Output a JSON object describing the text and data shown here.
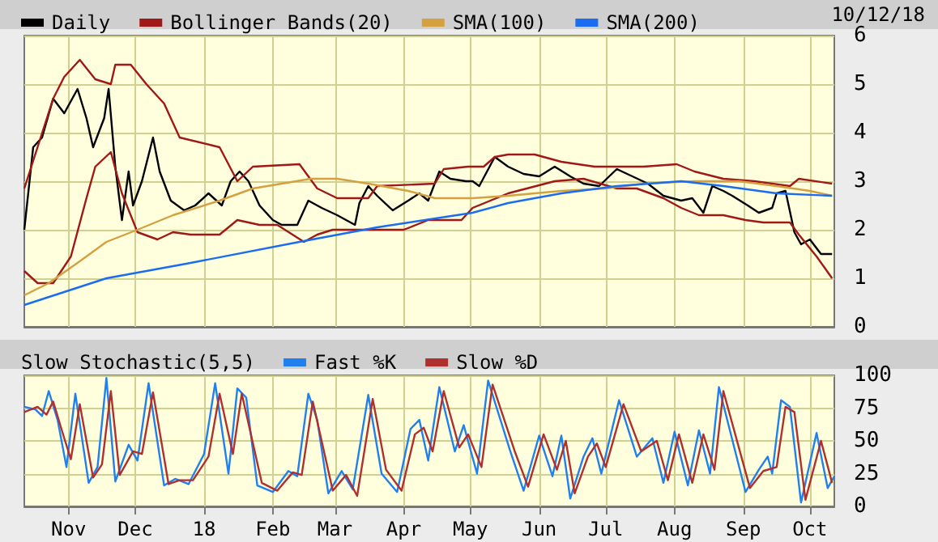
{
  "chart_data": [
    {
      "type": "line",
      "legend": "top left",
      "grid": true,
      "marker": "none",
      "line_style": "solid",
      "tick_labels": "y",
      "annotations": [
        "10/12/18"
      ],
      "xlim": [
        "2017-10-12",
        "2018-10-12"
      ],
      "xticks": [
        "2017-11-01",
        "2017-12-01",
        "2018-01-01",
        "2018-02-01",
        "2018-03-01",
        "2018-04-01",
        "2018-05-01",
        "2018-06-01",
        "2018-07-01",
        "2018-08-01",
        "2018-09-01",
        "2018-10-01"
      ],
      "ylim": [
        0,
        6
      ],
      "yticks": [
        0,
        1,
        2,
        3,
        4,
        5,
        6
      ],
      "series": [
        {
          "name": "Daily",
          "color": "#000000",
          "x": [
            "2017-10-12",
            "2017-10-16",
            "2017-10-20",
            "2017-10-25",
            "2017-10-30",
            "2017-11-05",
            "2017-11-09",
            "2017-11-12",
            "2017-11-17",
            "2017-11-19",
            "2017-11-22",
            "2017-11-25",
            "2017-11-28",
            "2017-11-30",
            "2017-12-04",
            "2017-12-09",
            "2017-12-12",
            "2017-12-17",
            "2017-12-23",
            "2017-12-28",
            "2018-01-03",
            "2018-01-09",
            "2018-01-13",
            "2018-01-17",
            "2018-01-21",
            "2018-01-26",
            "2018-02-01",
            "2018-02-05",
            "2018-02-12",
            "2018-02-17",
            "2018-02-23",
            "2018-03-02",
            "2018-03-10",
            "2018-03-12",
            "2018-03-16",
            "2018-03-20",
            "2018-03-27",
            "2018-04-03",
            "2018-04-08",
            "2018-04-12",
            "2018-04-17",
            "2018-04-22",
            "2018-04-29",
            "2018-05-02",
            "2018-05-05",
            "2018-05-12",
            "2018-05-18",
            "2018-05-25",
            "2018-06-01",
            "2018-06-08",
            "2018-06-15",
            "2018-06-21",
            "2018-06-28",
            "2018-07-06",
            "2018-07-13",
            "2018-07-20",
            "2018-07-27",
            "2018-08-04",
            "2018-08-09",
            "2018-08-14",
            "2018-08-18",
            "2018-08-23",
            "2018-08-27",
            "2018-09-03",
            "2018-09-08",
            "2018-09-14",
            "2018-09-16",
            "2018-09-20",
            "2018-09-24",
            "2018-09-27",
            "2018-10-01",
            "2018-10-06",
            "2018-10-11"
          ],
          "values": [
            2.0,
            3.7,
            3.9,
            4.7,
            4.4,
            4.9,
            4.3,
            3.7,
            4.3,
            4.9,
            3.3,
            2.2,
            3.2,
            2.5,
            3.0,
            3.9,
            3.2,
            2.6,
            2.4,
            2.5,
            2.75,
            2.5,
            3.0,
            3.2,
            3.0,
            2.5,
            2.2,
            2.1,
            2.1,
            2.6,
            2.45,
            2.3,
            2.1,
            2.55,
            2.9,
            2.7,
            2.4,
            2.6,
            2.75,
            2.6,
            3.2,
            3.05,
            3.0,
            3.0,
            2.9,
            3.5,
            3.3,
            3.15,
            3.1,
            3.3,
            3.1,
            2.95,
            2.9,
            3.25,
            3.1,
            2.95,
            2.7,
            2.6,
            2.65,
            2.35,
            2.9,
            2.8,
            2.7,
            2.5,
            2.35,
            2.45,
            2.75,
            2.8,
            1.95,
            1.7,
            1.8,
            1.5,
            1.5
          ]
        },
        {
          "name": "Bollinger Bands(20)",
          "color": "#a01818",
          "x": [
            "2017-10-12",
            "2017-10-25",
            "2017-10-30",
            "2017-11-06",
            "2017-11-13",
            "2017-11-20",
            "2017-11-22",
            "2017-11-29",
            "2017-12-06",
            "2017-12-14",
            "2017-12-21",
            "2018-01-08",
            "2018-01-16",
            "2018-01-23",
            "2018-02-13",
            "2018-02-21",
            "2018-03-02",
            "2018-03-16",
            "2018-03-20",
            "2018-04-15",
            "2018-04-19",
            "2018-04-30",
            "2018-05-07",
            "2018-05-12",
            "2018-05-18",
            "2018-05-30",
            "2018-06-11",
            "2018-06-26",
            "2018-07-06",
            "2018-07-18",
            "2018-08-02",
            "2018-08-10",
            "2018-08-23",
            "2018-09-06",
            "2018-09-22",
            "2018-09-26",
            "2018-10-11"
          ],
          "values": [
            2.85,
            4.7,
            5.15,
            5.5,
            5.1,
            5.0,
            5.4,
            5.4,
            5.0,
            4.6,
            3.9,
            3.7,
            3.0,
            3.3,
            3.35,
            2.85,
            2.65,
            2.65,
            2.9,
            2.95,
            3.25,
            3.3,
            3.3,
            3.5,
            3.55,
            3.55,
            3.4,
            3.3,
            3.3,
            3.3,
            3.35,
            3.2,
            3.05,
            3.0,
            2.9,
            3.05,
            2.95
          ]
        },
        {
          "color": "#a01818",
          "x": [
            "2017-10-12",
            "2017-10-18",
            "2017-10-25",
            "2017-11-02",
            "2017-11-09",
            "2017-11-13",
            "2017-11-20",
            "2017-11-25",
            "2017-12-02",
            "2017-12-11",
            "2017-12-18",
            "2017-12-26",
            "2018-01-08",
            "2018-01-16",
            "2018-01-26",
            "2018-02-03",
            "2018-02-15",
            "2018-02-21",
            "2018-02-28",
            "2018-03-20",
            "2018-04-01",
            "2018-04-12",
            "2018-04-27",
            "2018-05-02",
            "2018-05-18",
            "2018-06-08",
            "2018-06-21",
            "2018-07-06",
            "2018-07-15",
            "2018-07-27",
            "2018-08-04",
            "2018-08-12",
            "2018-08-23",
            "2018-09-02",
            "2018-09-10",
            "2018-09-22",
            "2018-09-26",
            "2018-10-04",
            "2018-10-11"
          ],
          "values": [
            1.15,
            0.9,
            0.9,
            1.45,
            2.65,
            3.3,
            3.6,
            2.75,
            1.95,
            1.8,
            1.95,
            1.9,
            1.9,
            2.2,
            2.1,
            2.1,
            1.75,
            1.9,
            2.0,
            2.0,
            2.0,
            2.2,
            2.2,
            2.45,
            2.75,
            3.0,
            3.05,
            2.85,
            2.85,
            2.65,
            2.45,
            2.3,
            2.3,
            2.2,
            2.15,
            2.15,
            1.9,
            1.45,
            1.0
          ]
        },
        {
          "name": "SMA(100)",
          "color": "#d4a040",
          "x": [
            "2017-10-12",
            "2017-10-23",
            "2017-11-06",
            "2017-11-18",
            "2017-12-02",
            "2017-12-18",
            "2018-01-08",
            "2018-01-23",
            "2018-02-05",
            "2018-02-18",
            "2018-03-02",
            "2018-03-16",
            "2018-04-03",
            "2018-04-15",
            "2018-05-02",
            "2018-05-18",
            "2018-06-11",
            "2018-07-01",
            "2018-07-18",
            "2018-08-10",
            "2018-08-30",
            "2018-09-16",
            "2018-10-01",
            "2018-10-11"
          ],
          "values": [
            0.65,
            0.9,
            1.35,
            1.75,
            2.0,
            2.3,
            2.6,
            2.85,
            2.95,
            3.05,
            3.05,
            2.95,
            2.8,
            2.65,
            2.65,
            2.7,
            2.8,
            2.85,
            2.95,
            3.0,
            3.0,
            2.9,
            2.8,
            2.7
          ]
        },
        {
          "name": "SMA(200)",
          "color": "#1a6cf0",
          "x": [
            "2017-10-12",
            "2017-11-18",
            "2017-12-24",
            "2018-02-13",
            "2018-03-20",
            "2018-05-02",
            "2018-05-18",
            "2018-06-11",
            "2018-07-06",
            "2018-08-04",
            "2018-08-23",
            "2018-09-16",
            "2018-10-11"
          ],
          "values": [
            0.45,
            1.0,
            1.3,
            1.75,
            2.05,
            2.35,
            2.55,
            2.75,
            2.9,
            3.0,
            2.9,
            2.75,
            2.7
          ]
        }
      ]
    },
    {
      "type": "line",
      "title": "Slow Stochastic(5,5)",
      "legend": "top left",
      "grid": true,
      "marker": "none",
      "line_style": "solid",
      "xlim": [
        "2017-10-12",
        "2018-10-12"
      ],
      "xticks": [
        {
          "value": "2017-11-01",
          "label": "Nov"
        },
        {
          "value": "2017-12-01",
          "label": "Dec"
        },
        {
          "value": "2018-01-01",
          "label": "18"
        },
        {
          "value": "2018-02-01",
          "label": "Feb"
        },
        {
          "value": "2018-03-01",
          "label": "Mar"
        },
        {
          "value": "2018-04-01",
          "label": "Apr"
        },
        {
          "value": "2018-05-01",
          "label": "May"
        },
        {
          "value": "2018-06-01",
          "label": "Jun"
        },
        {
          "value": "2018-07-01",
          "label": "Jul"
        },
        {
          "value": "2018-08-01",
          "label": "Aug"
        },
        {
          "value": "2018-09-01",
          "label": "Sep"
        },
        {
          "value": "2018-10-01",
          "label": "Oct"
        }
      ],
      "ylim": [
        0,
        100
      ],
      "yticks": [
        0,
        25,
        50,
        75,
        100
      ],
      "series": [
        {
          "name": "Fast %K",
          "color": "#2080f0",
          "x": [
            "2017-10-12",
            "2017-10-17",
            "2017-10-20",
            "2017-10-23",
            "2017-10-27",
            "2017-10-31",
            "2017-11-04",
            "2017-11-10",
            "2017-11-14",
            "2017-11-18",
            "2017-11-22",
            "2017-11-28",
            "2017-12-02",
            "2017-12-07",
            "2017-12-14",
            "2017-12-19",
            "2017-12-25",
            "2018-01-01",
            "2018-01-06",
            "2018-01-12",
            "2018-01-16",
            "2018-01-20",
            "2018-01-25",
            "2018-02-01",
            "2018-02-08",
            "2018-02-12",
            "2018-02-17",
            "2018-02-21",
            "2018-02-26",
            "2018-03-04",
            "2018-03-09",
            "2018-03-16",
            "2018-03-22",
            "2018-03-29",
            "2018-04-04",
            "2018-04-08",
            "2018-04-12",
            "2018-04-17",
            "2018-04-24",
            "2018-04-28",
            "2018-05-04",
            "2018-05-09",
            "2018-05-19",
            "2018-05-25",
            "2018-06-01",
            "2018-06-07",
            "2018-06-11",
            "2018-06-15",
            "2018-06-21",
            "2018-06-25",
            "2018-06-29",
            "2018-07-07",
            "2018-07-15",
            "2018-07-22",
            "2018-07-27",
            "2018-08-01",
            "2018-08-07",
            "2018-08-12",
            "2018-08-17",
            "2018-08-21",
            "2018-09-02",
            "2018-09-08",
            "2018-09-12",
            "2018-09-14",
            "2018-09-18",
            "2018-09-22",
            "2018-09-27",
            "2018-10-04",
            "2018-10-09",
            "2018-10-12"
          ],
          "values": [
            76,
            74,
            69,
            88,
            66,
            30,
            86,
            18,
            30,
            98,
            19,
            47,
            35,
            94,
            16,
            21,
            17,
            40,
            94,
            25,
            90,
            83,
            16,
            11,
            27,
            23,
            86,
            66,
            10,
            27,
            13,
            85,
            25,
            11,
            59,
            66,
            35,
            91,
            42,
            62,
            25,
            96,
            42,
            12,
            54,
            23,
            54,
            6,
            38,
            52,
            25,
            81,
            38,
            52,
            18,
            57,
            16,
            58,
            25,
            91,
            11,
            28,
            38,
            25,
            81,
            76,
            3,
            56,
            14,
            23
          ]
        },
        {
          "name": "Slow %D",
          "color": "#b03030",
          "x": [
            "2017-10-12",
            "2017-10-18",
            "2017-10-22",
            "2017-10-25",
            "2017-10-30",
            "2017-11-02",
            "2017-11-06",
            "2017-11-12",
            "2017-11-16",
            "2017-11-20",
            "2017-11-24",
            "2017-11-30",
            "2017-12-04",
            "2017-12-09",
            "2017-12-16",
            "2017-12-21",
            "2017-12-27",
            "2018-01-03",
            "2018-01-08",
            "2018-01-14",
            "2018-01-18",
            "2018-01-27",
            "2018-02-03",
            "2018-02-10",
            "2018-02-14",
            "2018-02-19",
            "2018-02-28",
            "2018-03-06",
            "2018-03-11",
            "2018-03-18",
            "2018-03-24",
            "2018-03-31",
            "2018-04-06",
            "2018-04-10",
            "2018-04-14",
            "2018-04-19",
            "2018-04-26",
            "2018-04-30",
            "2018-05-06",
            "2018-05-11",
            "2018-05-21",
            "2018-05-27",
            "2018-06-03",
            "2018-06-09",
            "2018-06-13",
            "2018-06-17",
            "2018-06-23",
            "2018-06-27",
            "2018-07-01",
            "2018-07-09",
            "2018-07-17",
            "2018-07-24",
            "2018-07-29",
            "2018-08-03",
            "2018-08-09",
            "2018-08-14",
            "2018-08-19",
            "2018-08-23",
            "2018-09-04",
            "2018-09-10",
            "2018-09-16",
            "2018-09-20",
            "2018-09-24",
            "2018-09-29",
            "2018-10-06",
            "2018-10-11"
          ],
          "values": [
            72,
            76,
            70,
            80,
            52,
            36,
            78,
            22,
            32,
            88,
            24,
            42,
            40,
            87,
            17,
            20,
            20,
            38,
            86,
            40,
            86,
            18,
            12,
            26,
            24,
            80,
            12,
            24,
            8,
            82,
            28,
            12,
            55,
            60,
            42,
            88,
            45,
            55,
            30,
            93,
            42,
            15,
            55,
            28,
            50,
            10,
            38,
            48,
            30,
            78,
            42,
            50,
            20,
            55,
            18,
            55,
            28,
            88,
            14,
            27,
            30,
            76,
            72,
            5,
            50,
            18
          ]
        }
      ]
    }
  ]
}
